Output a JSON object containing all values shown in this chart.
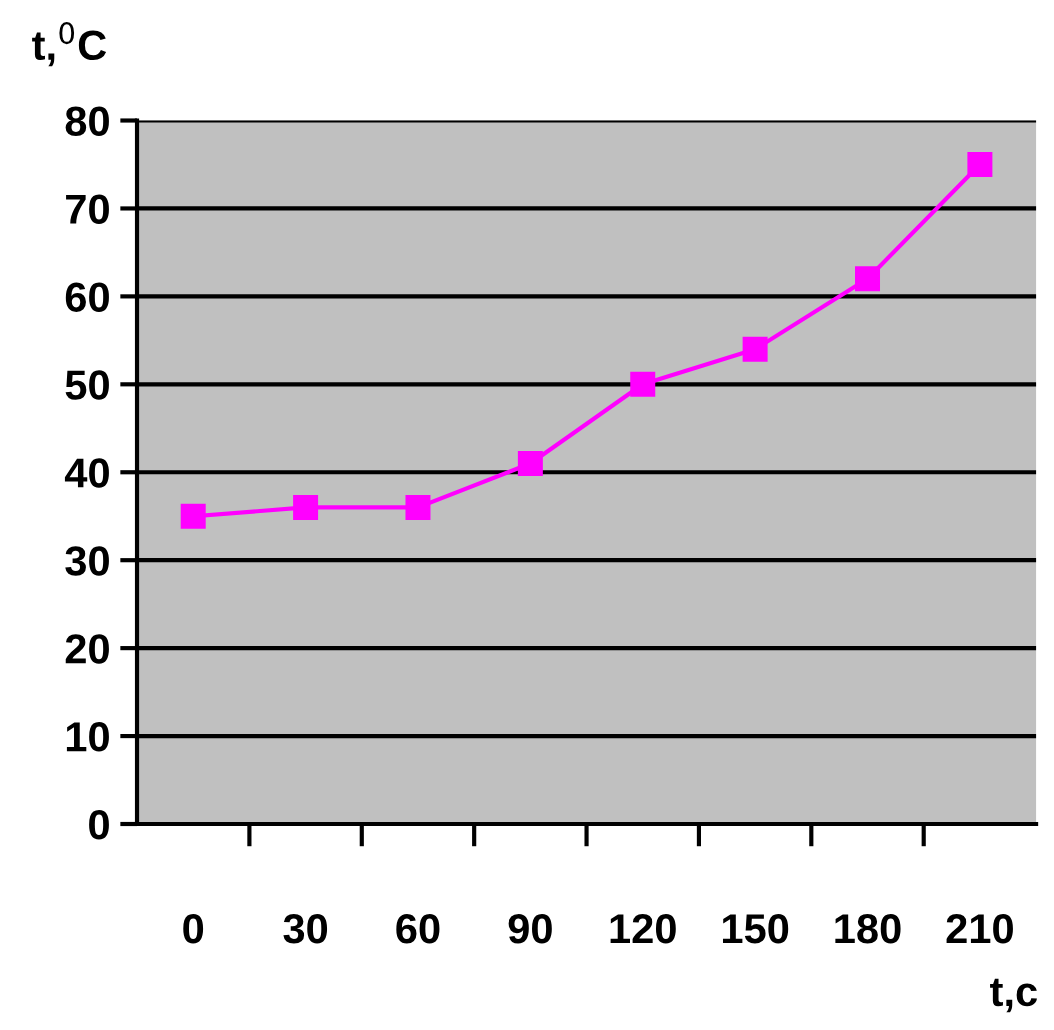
{
  "chart_data": {
    "type": "line",
    "xlabel": "t,c",
    "ylabel": "t,$^{0}$C",
    "categories": [
      "0",
      "30",
      "60",
      "90",
      "120",
      "150",
      "180",
      "210"
    ],
    "series": [
      {
        "color": "#ff00ff",
        "values": [
          35,
          36,
          36,
          41,
          50,
          54,
          62,
          75
        ]
      }
    ],
    "ylim": [
      0,
      80
    ],
    "yticks": [
      0,
      10,
      20,
      30,
      40,
      50,
      60,
      70,
      80
    ],
    "grid": "y",
    "marker": "square",
    "line_style": "solid",
    "legend": false
  }
}
